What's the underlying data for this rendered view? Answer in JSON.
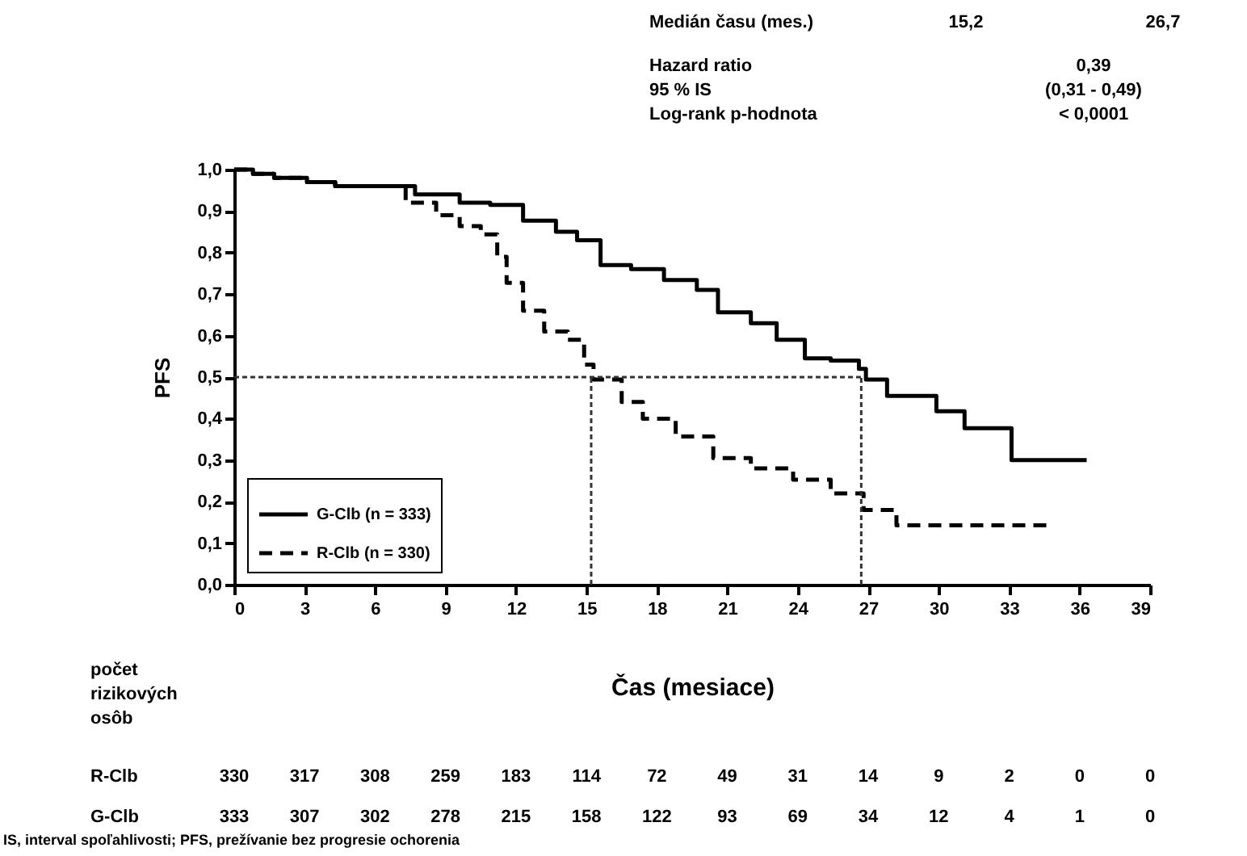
{
  "chart_data": {
    "type": "step",
    "xlabel": "Čas (mesiace)",
    "ylabel": "PFS",
    "xlim": [
      0,
      39
    ],
    "xticks": [
      0,
      3,
      6,
      9,
      12,
      15,
      18,
      21,
      24,
      27,
      30,
      33,
      36,
      39
    ],
    "ylim": [
      0,
      1
    ],
    "yticks": [
      {
        "value": 0,
        "label": "0,0"
      },
      {
        "value": 0.1,
        "label": "0,1"
      },
      {
        "value": 0.2,
        "label": "0,2"
      },
      {
        "value": 0.3,
        "label": "0,3"
      },
      {
        "value": 0.4,
        "label": "0,4"
      },
      {
        "value": 0.5,
        "label": "0,5"
      },
      {
        "value": 0.6,
        "label": "0,6"
      },
      {
        "value": 0.7,
        "label": "0,7"
      },
      {
        "value": 0.8,
        "label": "0,8"
      },
      {
        "value": 0.9,
        "label": "0,9"
      },
      {
        "value": 1,
        "label": "1,0"
      }
    ],
    "grid": false,
    "legend": "bottom left",
    "marker": "none",
    "series": [
      {
        "name": "G-Clb (n = 333)",
        "color": "#000000",
        "line_style": "solid",
        "x": [
          0,
          0.8,
          1.7,
          3.1,
          4.3,
          7.7,
          9.6,
          10.9,
          12.3,
          13.7,
          14.6,
          15.6,
          16.9,
          18.3,
          19.7,
          20.6,
          22,
          23.1,
          24.3,
          25.4,
          26.6,
          26.9,
          27.8,
          29.9,
          31.1,
          33.1,
          36.3
        ],
        "values": [
          1,
          0.99,
          0.98,
          0.97,
          0.96,
          0.94,
          0.92,
          0.915,
          0.877,
          0.85,
          0.83,
          0.77,
          0.76,
          0.734,
          0.71,
          0.656,
          0.63,
          0.59,
          0.545,
          0.54,
          0.52,
          0.494,
          0.455,
          0.418,
          0.377,
          0.3,
          0.3
        ]
      },
      {
        "name": "R-Clb (n = 330)",
        "color": "#000000",
        "line_style": "dashed",
        "x": [
          0,
          0.8,
          1.7,
          3.1,
          4.3,
          7.3,
          8.6,
          9.6,
          10.5,
          11.2,
          11.6,
          12.3,
          13.2,
          14.2,
          14.9,
          15.3,
          16.5,
          17.4,
          18.8,
          20.4,
          22,
          23.8,
          25.4,
          26.8,
          28.2,
          34.8
        ],
        "values": [
          1,
          0.99,
          0.98,
          0.97,
          0.96,
          0.92,
          0.89,
          0.864,
          0.844,
          0.79,
          0.727,
          0.66,
          0.61,
          0.59,
          0.53,
          0.494,
          0.44,
          0.4,
          0.357,
          0.305,
          0.28,
          0.253,
          0.22,
          0.18,
          0.143,
          0.143
        ]
      }
    ],
    "ref_lines": [
      {
        "axis": "y",
        "value": 0.5,
        "line_style": "dotted"
      },
      {
        "axis": "x",
        "value": 15.2,
        "line_style": "dotted"
      },
      {
        "axis": "x",
        "value": 26.7,
        "line_style": "dotted"
      }
    ],
    "annotations": [
      "Medián času (mes.)",
      "15,2",
      "26,7",
      "Hazard ratio",
      "0,39",
      "95 % IS",
      "(0,31 - 0,49)",
      "Log-rank p-hodnota",
      "< 0,0001",
      "počet rizikových osôb",
      "R-Clb",
      "330",
      "317",
      "308",
      "259",
      "183",
      "114",
      "72",
      "49",
      "31",
      "14",
      "9",
      "2",
      "0",
      "0",
      "G-Clb",
      "333",
      "307",
      "302",
      "278",
      "215",
      "158",
      "122",
      "93",
      "69",
      "34",
      "12",
      "4",
      "1",
      "0",
      "IS, interval spoľahlivosti; PFS, prežívanie bez progresie ochorenia"
    ]
  }
}
